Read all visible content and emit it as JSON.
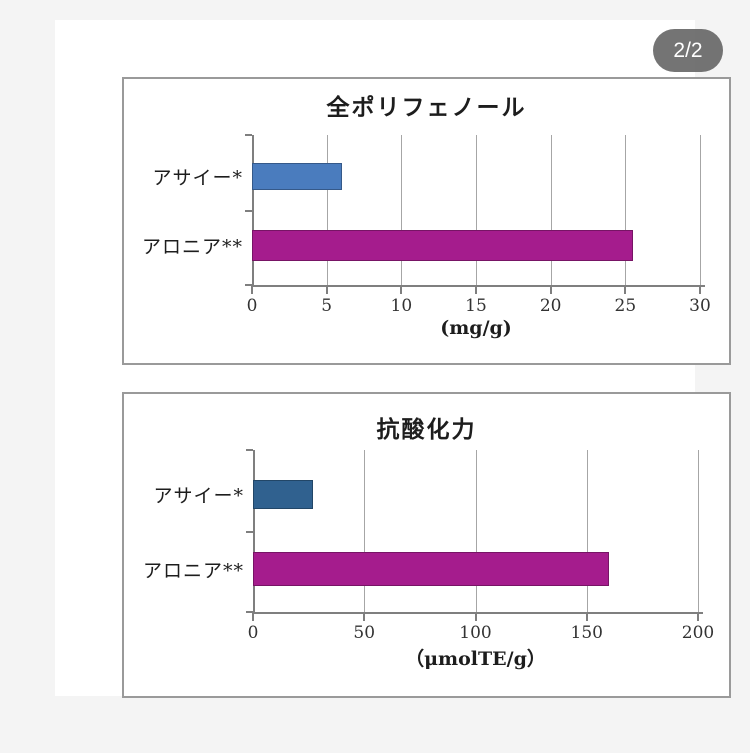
{
  "viewer": {
    "pagination_badge": "2/2"
  },
  "colors": {
    "page_bg": "#f4f4f4",
    "photo_bg": "#ffffff",
    "panel_border": "#9a9a9a",
    "gridline": "#a6a6a6",
    "axis": "#7f7f7f",
    "badge_bg": "#616161",
    "badge_text": "#ffffff",
    "acai_blue_top_chart": "#4a7cbe",
    "acai_blue_bottom_chart": "#30618f",
    "aronia_magenta": "#a51c8d",
    "text": "#1d1d1d"
  },
  "chart_data": [
    {
      "type": "bar",
      "orientation": "horizontal",
      "title": "全ポリフェノール",
      "categories": [
        "アサイー*",
        "アロニア**"
      ],
      "values": [
        6,
        25.5
      ],
      "bar_colors": [
        "#4a7cbe",
        "#a51c8d"
      ],
      "bar_names": [
        "bar-acai",
        "bar-aronia"
      ],
      "xlabel": "(mg/g)",
      "ylabel": "",
      "xlim": [
        0,
        30
      ],
      "xticks": [
        0,
        5,
        10,
        15,
        20,
        25,
        30
      ],
      "grid": true,
      "legend": false
    },
    {
      "type": "bar",
      "orientation": "horizontal",
      "title": "抗酸化力",
      "categories": [
        "アサイー*",
        "アロニア**"
      ],
      "values": [
        27,
        160
      ],
      "bar_colors": [
        "#30618f",
        "#a51c8d"
      ],
      "bar_names": [
        "bar-acai",
        "bar-aronia"
      ],
      "xlabel": "（μmolTE/g）",
      "ylabel": "",
      "xlim": [
        0,
        200
      ],
      "xticks": [
        0,
        50,
        100,
        150,
        200
      ],
      "grid": true,
      "legend": false
    }
  ]
}
